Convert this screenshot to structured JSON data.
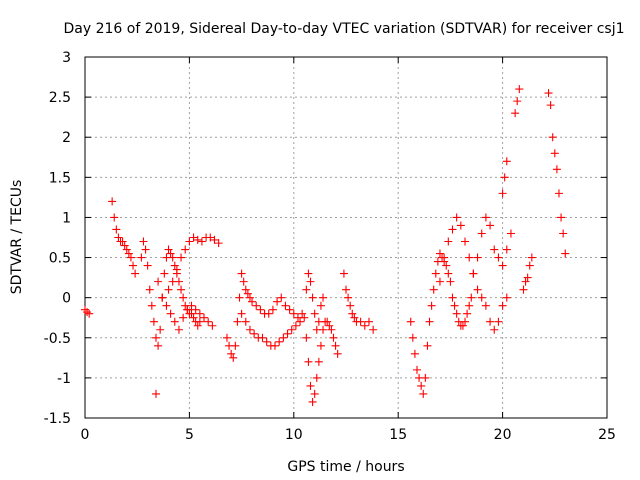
{
  "chart_data": {
    "type": "scatter",
    "title": "Day 216 of 2019, Sidereal Day-to-day VTEC variation (SDTVAR) for receiver csj1",
    "xlabel": "GPS time / hours",
    "ylabel": "SDTVAR / TECUs",
    "xlim": [
      0,
      25
    ],
    "ylim": [
      -1.5,
      3
    ],
    "xticks": [
      0,
      5,
      10,
      15,
      20,
      25
    ],
    "xtick_labels": [
      "0",
      "5",
      "10",
      "15",
      "20",
      "25"
    ],
    "yticks": [
      -1.5,
      -1,
      -0.5,
      0,
      0.5,
      1,
      1.5,
      2,
      2.5,
      3
    ],
    "ytick_labels": [
      "-1.5",
      "-1",
      "-0.5",
      "0",
      "0.5",
      "1",
      "1.5",
      "2",
      "2.5",
      "3"
    ],
    "grid": true,
    "marker": "+",
    "color": "#ff0000",
    "series": [
      {
        "name": "csj1 SDTVAR",
        "x": [
          0.0,
          0.1,
          0.2,
          1.3,
          1.4,
          1.5,
          1.6,
          1.7,
          1.8,
          1.9,
          2.0,
          2.1,
          2.2,
          2.3,
          2.4,
          2.7,
          2.8,
          2.9,
          3.0,
          3.1,
          3.2,
          3.3,
          3.4,
          3.5,
          3.6,
          3.7,
          3.8,
          3.9,
          4.0,
          4.1,
          4.2,
          4.3,
          4.4,
          4.5,
          4.6,
          4.7,
          4.8,
          4.9,
          5.0,
          5.1,
          5.2,
          5.3,
          5.4,
          5.5,
          4.0,
          4.2,
          4.4,
          4.6,
          4.8,
          5.0,
          5.2,
          5.4,
          5.6,
          5.8,
          6.0,
          6.2,
          6.4,
          3.5,
          3.7,
          3.9,
          4.1,
          4.3,
          4.5,
          4.7,
          4.9,
          5.1,
          5.3,
          5.5,
          5.7,
          5.9,
          6.1,
          3.4,
          6.8,
          6.9,
          7.0,
          7.1,
          7.2,
          7.3,
          7.4,
          7.5,
          7.6,
          7.7,
          7.8,
          7.9,
          8.0,
          8.2,
          8.4,
          8.6,
          8.8,
          9.0,
          9.2,
          9.4,
          9.6,
          9.8,
          10.0,
          10.2,
          10.4,
          7.5,
          7.7,
          7.9,
          8.1,
          8.3,
          8.5,
          8.7,
          8.9,
          9.1,
          9.3,
          9.5,
          9.7,
          9.9,
          10.1,
          10.3,
          10.5,
          10.6,
          10.7,
          10.8,
          10.9,
          11.0,
          11.1,
          11.2,
          11.3,
          11.4,
          10.6,
          10.7,
          10.8,
          10.9,
          11.0,
          11.1,
          11.2,
          11.3,
          11.4,
          11.5,
          11.6,
          11.7,
          11.8,
          11.9,
          12.0,
          12.1,
          12.4,
          12.5,
          12.6,
          12.7,
          12.8,
          12.9,
          13.0,
          13.2,
          13.4,
          13.6,
          13.8,
          15.6,
          15.7,
          15.8,
          15.9,
          16.0,
          16.1,
          16.2,
          16.3,
          16.4,
          16.5,
          16.6,
          16.7,
          16.8,
          16.9,
          17.0,
          17.1,
          17.2,
          17.3,
          17.4,
          17.5,
          17.6,
          17.7,
          17.8,
          17.9,
          18.0,
          18.1,
          18.2,
          18.3,
          18.4,
          18.5,
          17.0,
          17.2,
          17.4,
          17.6,
          17.8,
          18.0,
          18.2,
          18.4,
          18.6,
          18.8,
          19.0,
          19.2,
          19.4,
          19.6,
          19.8,
          20.0,
          20.2,
          18.6,
          18.8,
          19.0,
          19.2,
          19.4,
          19.6,
          19.8,
          20.0,
          20.2,
          20.4,
          20.0,
          20.1,
          20.2,
          20.6,
          20.7,
          20.8,
          21.0,
          21.1,
          21.2,
          21.3,
          21.4,
          22.2,
          22.3,
          22.4,
          22.5,
          22.6,
          22.7,
          22.8,
          22.9,
          23.0
        ],
        "y": [
          -0.15,
          -0.18,
          -0.2,
          1.2,
          1.0,
          0.85,
          0.75,
          0.7,
          0.7,
          0.65,
          0.6,
          0.55,
          0.5,
          0.4,
          0.3,
          0.5,
          0.7,
          0.6,
          0.4,
          0.1,
          -0.1,
          -0.3,
          -0.5,
          -0.6,
          -0.4,
          0.0,
          0.3,
          0.5,
          0.6,
          0.55,
          0.5,
          0.4,
          0.3,
          0.2,
          0.1,
          0.0,
          -0.1,
          -0.15,
          -0.2,
          -0.2,
          -0.25,
          -0.3,
          -0.35,
          -0.3,
          0.1,
          0.2,
          0.35,
          0.5,
          0.6,
          0.7,
          0.75,
          0.72,
          0.7,
          0.75,
          0.75,
          0.72,
          0.68,
          0.2,
          0.0,
          -0.1,
          -0.2,
          -0.3,
          -0.4,
          -0.25,
          -0.15,
          -0.1,
          -0.15,
          -0.2,
          -0.25,
          -0.3,
          -0.35,
          -1.2,
          -0.5,
          -0.6,
          -0.7,
          -0.75,
          -0.6,
          -0.3,
          0.0,
          0.3,
          0.2,
          0.1,
          0.05,
          0.0,
          -0.05,
          -0.1,
          -0.15,
          -0.2,
          -0.2,
          -0.15,
          -0.05,
          0.0,
          -0.1,
          -0.15,
          -0.2,
          -0.25,
          -0.2,
          -0.2,
          -0.3,
          -0.4,
          -0.45,
          -0.5,
          -0.5,
          -0.55,
          -0.6,
          -0.6,
          -0.55,
          -0.5,
          -0.45,
          -0.4,
          -0.35,
          -0.3,
          -0.25,
          0.1,
          0.3,
          0.2,
          0.0,
          -0.2,
          -0.4,
          -0.3,
          -0.1,
          0.0,
          -0.5,
          -0.8,
          -1.1,
          -1.3,
          -1.2,
          -1.0,
          -0.8,
          -0.6,
          -0.4,
          -0.3,
          -0.3,
          -0.35,
          -0.4,
          -0.5,
          -0.6,
          -0.7,
          0.3,
          0.1,
          0.0,
          -0.1,
          -0.2,
          -0.25,
          -0.3,
          -0.3,
          -0.35,
          -0.3,
          -0.4,
          -0.3,
          -0.5,
          -0.7,
          -0.9,
          -1.0,
          -1.1,
          -1.2,
          -1.0,
          -0.6,
          -0.3,
          -0.1,
          0.1,
          0.3,
          0.45,
          0.55,
          0.5,
          0.45,
          0.4,
          0.3,
          0.2,
          0.0,
          -0.1,
          -0.2,
          -0.3,
          -0.35,
          -0.35,
          -0.3,
          -0.2,
          -0.1,
          0.0,
          0.2,
          0.5,
          0.7,
          0.85,
          1.0,
          0.9,
          0.7,
          0.5,
          0.3,
          0.1,
          0.0,
          -0.1,
          -0.3,
          -0.4,
          -0.3,
          -0.1,
          0.0,
          0.3,
          0.5,
          0.8,
          1.0,
          0.9,
          0.6,
          0.5,
          0.4,
          0.6,
          0.8,
          1.3,
          1.5,
          1.7,
          2.3,
          2.45,
          2.6,
          0.1,
          0.2,
          0.25,
          0.4,
          0.5,
          2.55,
          2.4,
          2.0,
          1.8,
          1.6,
          1.3,
          1.0,
          0.8,
          0.55
        ]
      }
    ]
  }
}
